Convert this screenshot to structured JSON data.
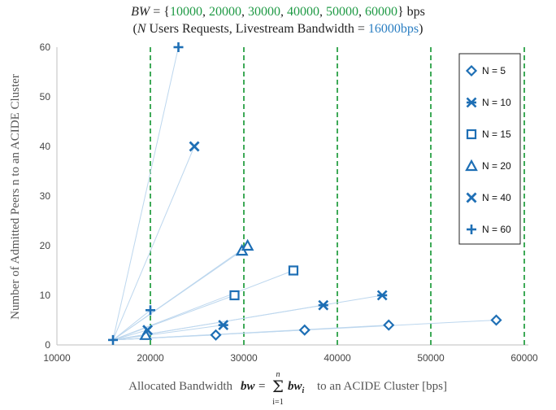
{
  "title": {
    "bw_var": "BW",
    "eq": " = {",
    "set_values": [
      "10000",
      "20000",
      "30000",
      "40000",
      "50000",
      "60000"
    ],
    "close": "} bps",
    "open_paren": "(",
    "n_var": "N",
    "middle": " Users Requests, Livestream Bandwidth = ",
    "livestream_bw": "16000bps",
    "close_paren": ")"
  },
  "axes": {
    "ylabel": "Number of Admitted Peers n to an ACIDE Cluster",
    "xlabel_prefix": "Allocated Bandwidth",
    "xlabel_formula": "bw = Σ bw_i",
    "sum_top": "n",
    "sum_bottom": "i=1",
    "xlabel_suffix": "to an ACIDE Cluster [bps]"
  },
  "colors": {
    "marker": "#1e6fb5",
    "line": "#bdd7ee",
    "vline": "#2aa045",
    "axis": "#bfbfbf"
  },
  "chart_data": {
    "type": "scatter",
    "xlim": [
      10000,
      60000
    ],
    "ylim": [
      0,
      60
    ],
    "xticks": [
      "10000",
      "20000",
      "30000",
      "40000",
      "50000",
      "60000"
    ],
    "yticks": [
      "0",
      "10",
      "20",
      "30",
      "40",
      "50",
      "60"
    ],
    "vertical_lines_x": [
      20000,
      30000,
      40000,
      50000,
      60000
    ],
    "origin_point": {
      "x": 16000,
      "y": 1
    },
    "grid": false,
    "legend_position": "top-right",
    "series": [
      {
        "name": "N = 5",
        "marker": "diamond",
        "points": [
          [
            27000,
            2
          ],
          [
            36500,
            3
          ],
          [
            45500,
            4
          ],
          [
            57000,
            5
          ]
        ]
      },
      {
        "name": "N = 10",
        "marker": "asterisk",
        "points": [
          [
            27800,
            4
          ],
          [
            38500,
            8
          ],
          [
            44800,
            10
          ]
        ]
      },
      {
        "name": "N = 15",
        "marker": "square",
        "points": [
          [
            29000,
            10
          ],
          [
            35300,
            15
          ]
        ]
      },
      {
        "name": "N = 20",
        "marker": "triangle",
        "points": [
          [
            19500,
            2
          ],
          [
            29800,
            19
          ],
          [
            30400,
            20
          ]
        ]
      },
      {
        "name": "N = 40",
        "marker": "x",
        "points": [
          [
            19700,
            3
          ],
          [
            24700,
            40
          ]
        ]
      },
      {
        "name": "N = 60",
        "marker": "plus",
        "points": [
          [
            16000,
            1
          ],
          [
            20000,
            7
          ],
          [
            23000,
            60
          ]
        ]
      }
    ]
  }
}
